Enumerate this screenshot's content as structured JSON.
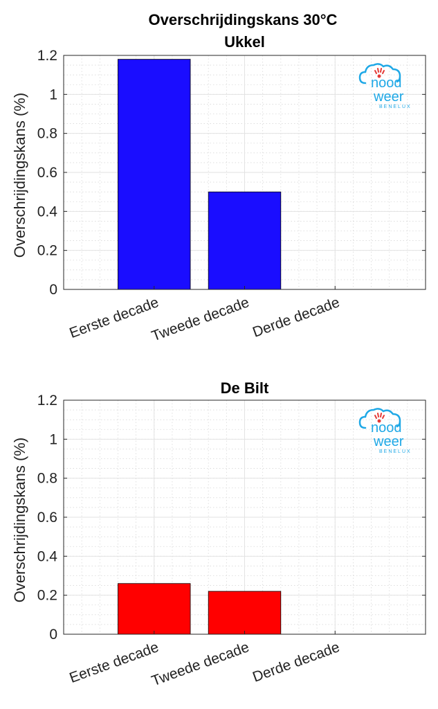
{
  "figure_title": "Overschrijdingskans 30°C",
  "logo": {
    "line1": "nood",
    "line2": "weer",
    "line3": "BENELUX",
    "color": "#1fa8e6",
    "accent": "#e53935"
  },
  "chart_data": [
    {
      "type": "bar",
      "title": "Ukkel",
      "ylabel": "Overschrijdingskans (%)",
      "xlabel": "",
      "categories": [
        "Eerste decade",
        "Tweede decade",
        "Derde decade"
      ],
      "values": [
        1.18,
        0.5,
        0
      ],
      "ylim": [
        0,
        1.2
      ],
      "yticks": [
        0,
        0.2,
        0.4,
        0.6,
        0.8,
        1,
        1.2
      ],
      "ytick_labels": [
        "0",
        "0.2",
        "0.4",
        "0.6",
        "0.8",
        "1",
        "1.2"
      ],
      "bar_color": "#1a0dff",
      "grid": true,
      "minor_grid": true
    },
    {
      "type": "bar",
      "title": "De Bilt",
      "ylabel": "Overschrijdingskans (%)",
      "xlabel": "",
      "categories": [
        "Eerste decade",
        "Tweede decade",
        "Derde decade"
      ],
      "values": [
        0.26,
        0.22,
        0
      ],
      "ylim": [
        0,
        1.2
      ],
      "yticks": [
        0,
        0.2,
        0.4,
        0.6,
        0.8,
        1,
        1.2
      ],
      "ytick_labels": [
        "0",
        "0.2",
        "0.4",
        "0.6",
        "0.8",
        "1",
        "1.2"
      ],
      "bar_color": "#ff0000",
      "grid": true,
      "minor_grid": true
    }
  ]
}
